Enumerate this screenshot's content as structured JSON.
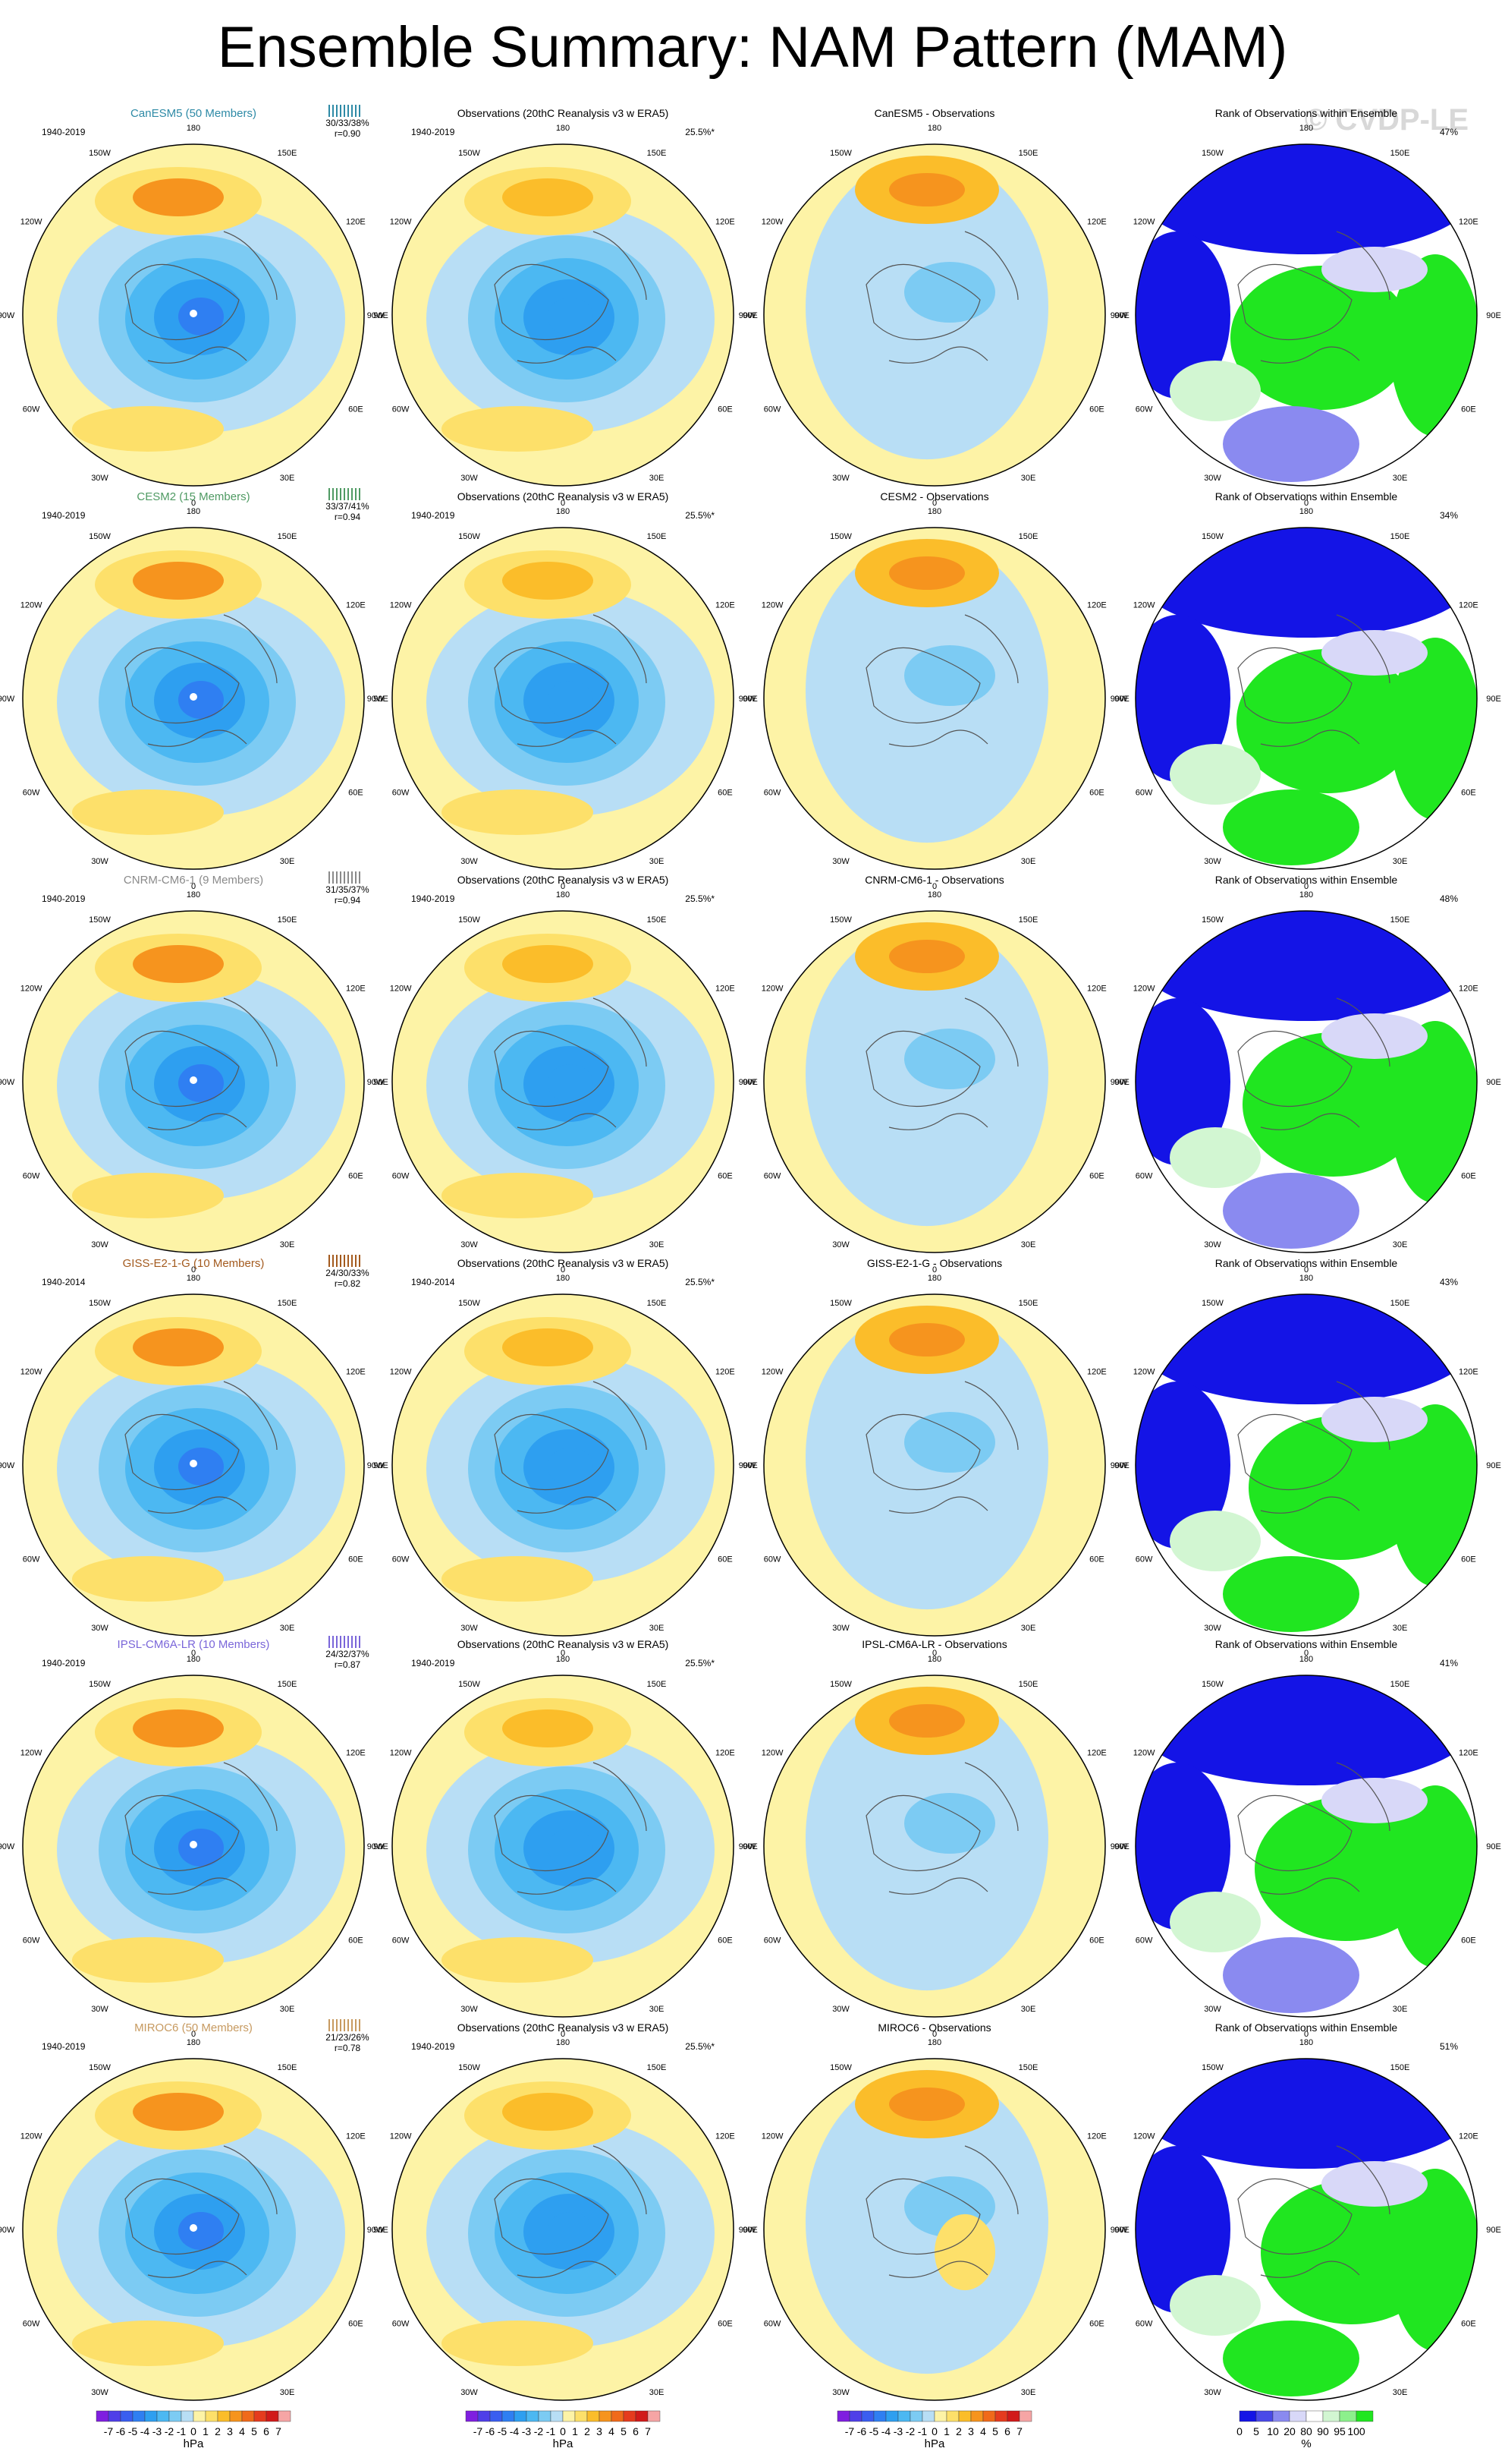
{
  "title": "Ensemble Summary: NAM Pattern (MAM)",
  "watermark": "© CVDP-LE",
  "colors": {
    "model_cyan": "#2e8aa6",
    "model_green": "#4f9a63",
    "model_grey": "#8a8a8a",
    "model_brown": "#a35a1e",
    "model_purple": "#7a66d9",
    "model_tan": "#c79a60"
  },
  "panel_titles": {
    "observations": "Observations (20thC Reanalysis v3 w ERA5)",
    "rank": "Rank of Observations within Ensemble"
  },
  "lon_labels": [
    "180",
    "150E",
    "120E",
    "90E",
    "60E",
    "30E",
    "0",
    "30W",
    "60W",
    "90W",
    "120W",
    "150W"
  ],
  "rows": [
    {
      "model_title": "CanESM5 (50 Members)",
      "model_color": "model_cyan",
      "period": "1940-2019",
      "stats": "30/33/38%",
      "corr": "r=0.90",
      "obs_period": "1940-2019",
      "obs_pct": "25.5%*",
      "diff_title": "CanESM5 - Observations",
      "rank_pct": "47%"
    },
    {
      "model_title": "CESM2 (15 Members)",
      "model_color": "model_green",
      "period": "1940-2019",
      "stats": "33/37/41%",
      "corr": "r=0.94",
      "obs_period": "1940-2019",
      "obs_pct": "25.5%*",
      "diff_title": "CESM2 - Observations",
      "rank_pct": "34%"
    },
    {
      "model_title": "CNRM-CM6-1 (9 Members)",
      "model_color": "model_grey",
      "period": "1940-2019",
      "stats": "31/35/37%",
      "corr": "r=0.94",
      "obs_period": "1940-2019",
      "obs_pct": "25.5%*",
      "diff_title": "CNRM-CM6-1 - Observations",
      "rank_pct": "48%"
    },
    {
      "model_title": "GISS-E2-1-G (10 Members)",
      "model_color": "model_brown",
      "period": "1940-2014",
      "stats": "24/30/33%",
      "corr": "r=0.82",
      "obs_period": "1940-2014",
      "obs_pct": "25.5%*",
      "diff_title": "GISS-E2-1-G - Observations",
      "rank_pct": "43%"
    },
    {
      "model_title": "IPSL-CM6A-LR (10 Members)",
      "model_color": "model_purple",
      "period": "1940-2019",
      "stats": "24/32/37%",
      "corr": "r=0.87",
      "obs_period": "1940-2019",
      "obs_pct": "25.5%*",
      "diff_title": "IPSL-CM6A-LR - Observations",
      "rank_pct": "41%"
    },
    {
      "model_title": "MIROC6 (50 Members)",
      "model_color": "model_tan",
      "period": "1940-2019",
      "stats": "21/23/26%",
      "corr": "r=0.78",
      "obs_period": "1940-2019",
      "obs_pct": "25.5%*",
      "diff_title": "MIROC6 - Observations",
      "rank_pct": "51%"
    }
  ],
  "hpa_legend": {
    "labels": [
      "-7",
      "-6",
      "-5",
      "-4",
      "-3",
      "-2",
      "-1",
      "0",
      "1",
      "2",
      "3",
      "4",
      "5",
      "6",
      "7"
    ],
    "units": "hPa",
    "colors": [
      "#7f1fe0",
      "#4f3fe8",
      "#3a5ef0",
      "#2f7ff2",
      "#2e9ff0",
      "#4cb8f2",
      "#7ccbf3",
      "#b8def5",
      "#fdf3a6",
      "#fde06a",
      "#fbbd2a",
      "#f6941e",
      "#f06a1a",
      "#e53b1e",
      "#d11a1a",
      "#f6a5a5"
    ]
  },
  "rank_legend": {
    "labels": [
      "0",
      "5",
      "10",
      "20",
      "80",
      "90",
      "95",
      "100"
    ],
    "units": "%",
    "colors": [
      "#1414e6",
      "#4a4ae8",
      "#8a8af0",
      "#d8d8f8",
      "#ffffff",
      "#d2f6d2",
      "#8cf08c",
      "#20e620"
    ]
  }
}
